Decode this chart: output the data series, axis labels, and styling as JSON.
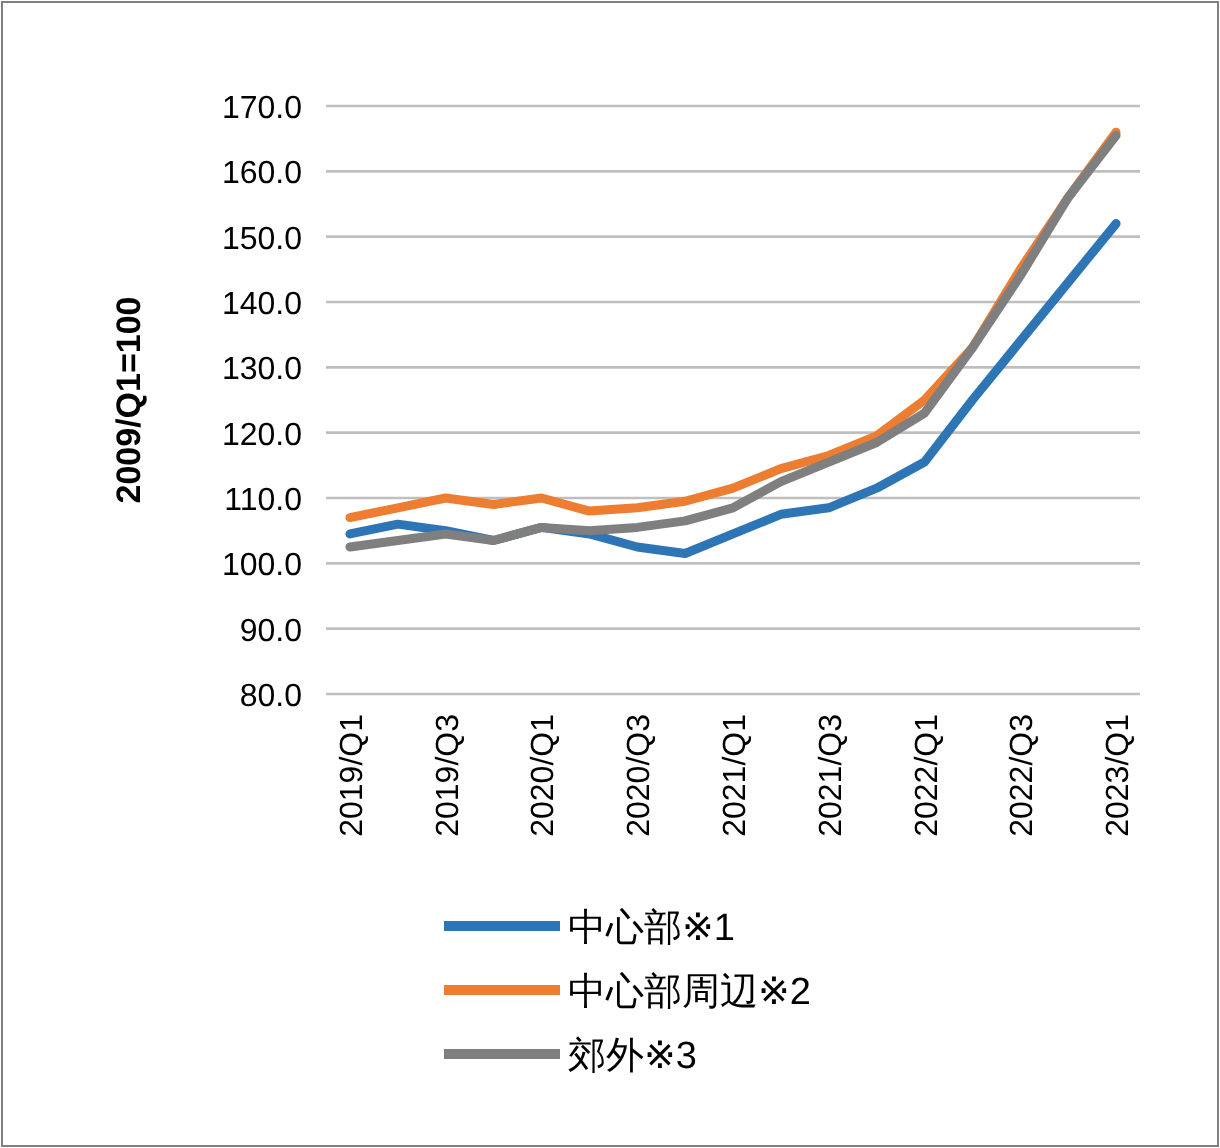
{
  "chart_data": {
    "type": "line",
    "ylabel": "2009/Q1=100",
    "categories": [
      "2019/Q1",
      null,
      "2019/Q3",
      null,
      "2020/Q1",
      null,
      "2020/Q3",
      null,
      "2021/Q1",
      null,
      "2021/Q3",
      null,
      "2022/Q1",
      null,
      "2022/Q3",
      null,
      "2023/Q1"
    ],
    "series": [
      {
        "name": "中心部※1",
        "color": "#2e75b6",
        "values": [
          104.5,
          106,
          105,
          103.5,
          105.5,
          104.5,
          102.5,
          101.5,
          104.5,
          107.5,
          108.5,
          111.5,
          115.5,
          125,
          134,
          143,
          152
        ]
      },
      {
        "name": "中心部周辺※2",
        "color": "#ed7d31",
        "values": [
          107,
          108.5,
          110,
          109,
          110,
          108,
          108.5,
          109.5,
          111.5,
          114.5,
          116.5,
          119.5,
          125,
          133,
          145,
          156,
          166
        ]
      },
      {
        "name": "郊外※3",
        "color": "#7f7f7f",
        "values": [
          102.5,
          103.5,
          104.5,
          103.5,
          105.5,
          105,
          105.5,
          106.5,
          108.5,
          112.5,
          115.5,
          118.5,
          123,
          133,
          144,
          156,
          165.5
        ]
      }
    ],
    "ylim": [
      80,
      170
    ],
    "yticks": [
      {
        "value": 80,
        "label": "80.0"
      },
      {
        "value": 90,
        "label": "90.0"
      },
      {
        "value": 100,
        "label": "100.0"
      },
      {
        "value": 110,
        "label": "110.0"
      },
      {
        "value": 120,
        "label": "120.0"
      },
      {
        "value": 130,
        "label": "130.0"
      },
      {
        "value": 140,
        "label": "140.0"
      },
      {
        "value": 150,
        "label": "150.0"
      },
      {
        "value": 160,
        "label": "160.0"
      },
      {
        "value": 170,
        "label": "170.0"
      }
    ],
    "grid": "y",
    "legend": "bottom",
    "marker": "none",
    "line_style": "solid"
  }
}
